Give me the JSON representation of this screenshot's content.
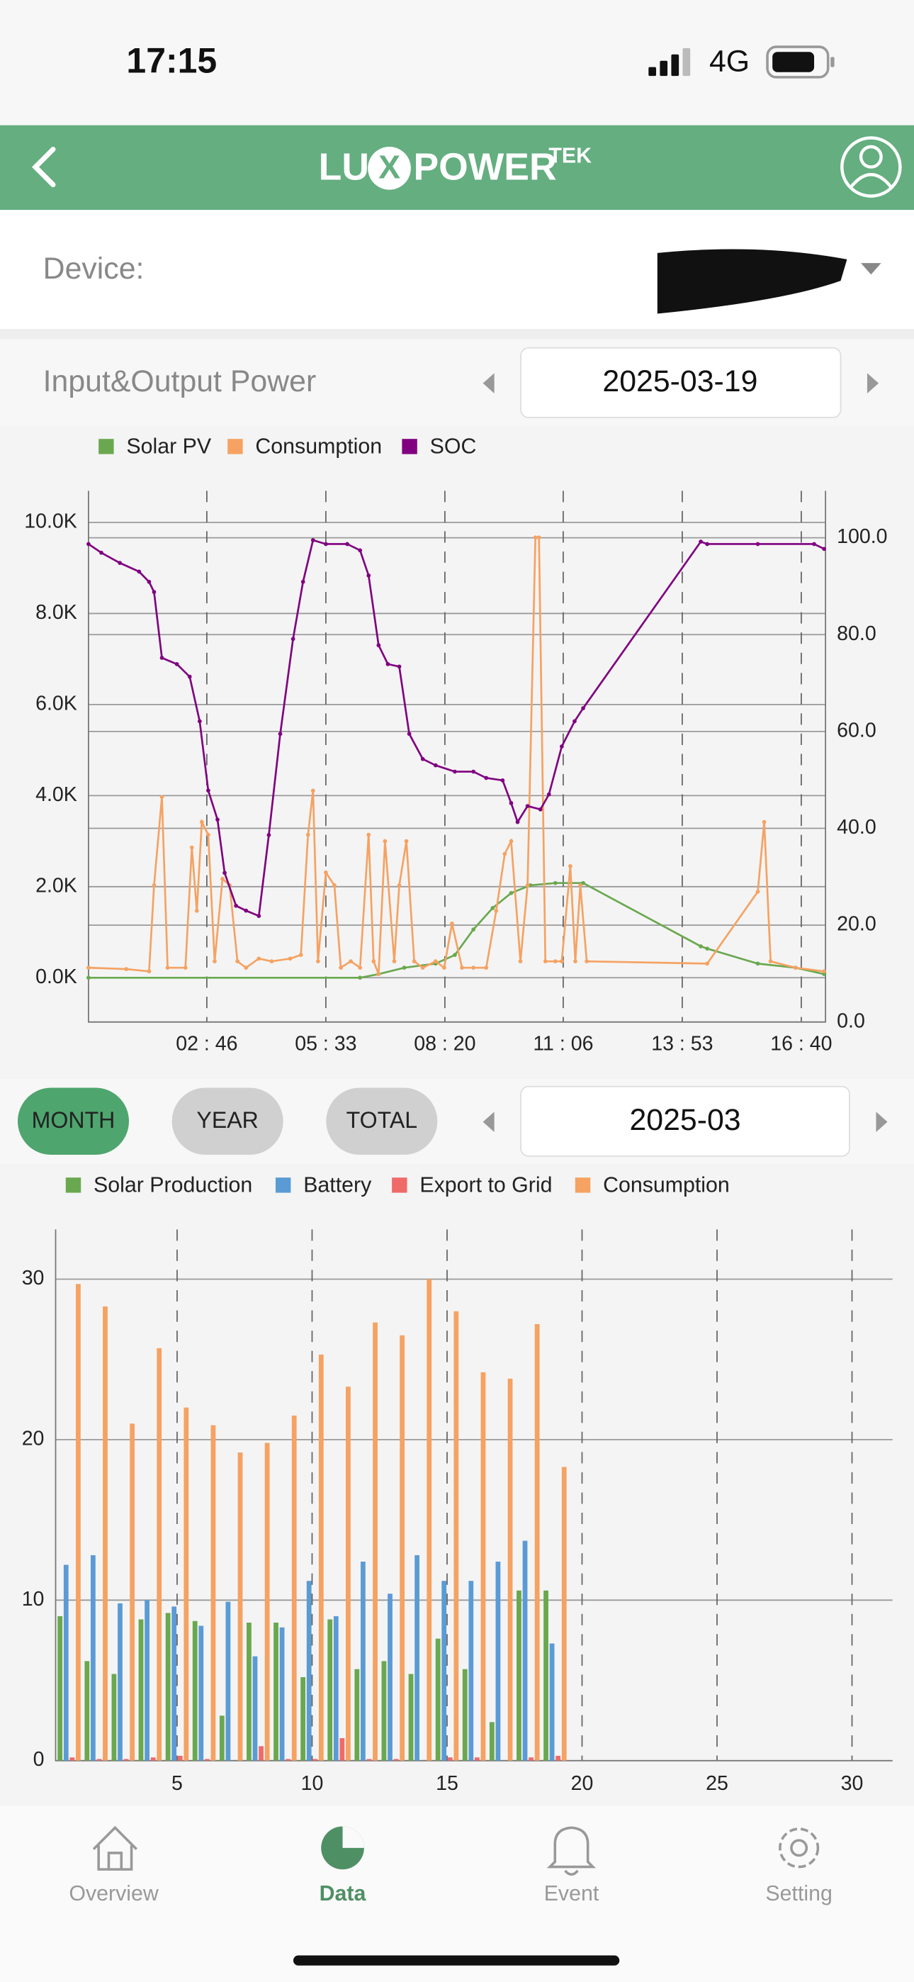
{
  "status_bar": {
    "time": "17:15",
    "network": "4G"
  },
  "header": {
    "brand": [
      "LU",
      "X",
      "POWER"
    ],
    "brand_suffix": "TEK"
  },
  "device": {
    "label": "Device:"
  },
  "power_section": {
    "title": "Input&Output Power",
    "date": "2025-03-19"
  },
  "chart_data": [
    {
      "type": "line",
      "xlim": [
        0,
        1034
      ],
      "xticks": [
        {
          "value": 166,
          "label": "02 : 46"
        },
        {
          "value": 333,
          "label": "05 : 33"
        },
        {
          "value": 500,
          "label": "08 : 20"
        },
        {
          "value": 666,
          "label": "11 : 06"
        },
        {
          "value": 833,
          "label": "13 : 53"
        },
        {
          "value": 1000,
          "label": "16 : 40"
        }
      ],
      "ylim": [
        -972,
        10695
      ],
      "yticks": [
        {
          "value": 0,
          "label": "0.0K"
        },
        {
          "value": 2000,
          "label": "2.0K"
        },
        {
          "value": 4000,
          "label": "4.0K"
        },
        {
          "value": 6000,
          "label": "6.0K"
        },
        {
          "value": 8000,
          "label": "8.0K"
        },
        {
          "value": 10000,
          "label": "10.0K"
        }
      ],
      "y2lim": [
        0,
        109.7
      ],
      "y2ticks": [
        {
          "value": 0,
          "label": "0.0"
        },
        {
          "value": 20,
          "label": "20.0"
        },
        {
          "value": 40,
          "label": "40.0"
        },
        {
          "value": 60,
          "label": "60.0"
        },
        {
          "value": 80,
          "label": "80.0"
        },
        {
          "value": 100,
          "label": "100.0"
        }
      ],
      "grid": true,
      "series": [
        {
          "name": "Solar PV",
          "color": "#6aa84f",
          "x": [
            0,
            381,
            407,
            443,
            487,
            514,
            540,
            567,
            593,
            620,
            655,
            694,
            859,
            868,
            939,
            992,
            1032
          ],
          "values": [
            0,
            0,
            80,
            220,
            310,
            500,
            1060,
            1530,
            1860,
            2030,
            2080,
            2080,
            690,
            640,
            310,
            220,
            80
          ]
        },
        {
          "name": "Consumption",
          "color": "#f5a262",
          "x": [
            0,
            53,
            85,
            92,
            103,
            111,
            136,
            145,
            152,
            159,
            168,
            177,
            188,
            198,
            209,
            221,
            239,
            257,
            283,
            298,
            308,
            315,
            322,
            333,
            345,
            354,
            368,
            381,
            393,
            400,
            407,
            416,
            429,
            436,
            446,
            457,
            469,
            487,
            499,
            510,
            524,
            540,
            558,
            572,
            584,
            593,
            606,
            616,
            627,
            632,
            641,
            655,
            664,
            676,
            683,
            690,
            699,
            868,
            939,
            948,
            957,
            992,
            1032
          ],
          "values": [
            220,
            190,
            140,
            2030,
            3970,
            220,
            220,
            2860,
            1470,
            3420,
            3140,
            360,
            2170,
            2030,
            360,
            220,
            420,
            360,
            420,
            500,
            3140,
            4110,
            360,
            2310,
            2030,
            220,
            360,
            220,
            3140,
            360,
            80,
            3000,
            360,
            2030,
            3000,
            360,
            220,
            360,
            220,
            1190,
            220,
            220,
            220,
            1470,
            2720,
            3000,
            360,
            2030,
            9670,
            9670,
            360,
            360,
            360,
            2450,
            360,
            2030,
            360,
            310,
            1890,
            3420,
            360,
            220,
            140
          ]
        },
        {
          "name": "SOC",
          "color": "#800080",
          "axis": "y2",
          "x": [
            0,
            18,
            44,
            71,
            85,
            92,
            103,
            124,
            142,
            156,
            168,
            181,
            191,
            207,
            221,
            239,
            253,
            269,
            287,
            301,
            315,
            333,
            363,
            381,
            393,
            407,
            420,
            436,
            450,
            469,
            487,
            514,
            540,
            558,
            581,
            593,
            602,
            616,
            634,
            646,
            664,
            682,
            694,
            859,
            868,
            939,
            1018,
            1032
          ],
          "values": [
            98.7,
            96.9,
            94.8,
            93,
            90.9,
            88.8,
            75.2,
            73.9,
            71.3,
            62.1,
            47.8,
            41.8,
            30.8,
            24,
            23,
            21.9,
            38.6,
            59.5,
            79.1,
            90.9,
            99.5,
            98.7,
            98.7,
            97.4,
            92.2,
            77.8,
            73.9,
            73.4,
            59.5,
            54.3,
            53,
            51.7,
            51.7,
            50.4,
            49.9,
            45.2,
            41.3,
            44.6,
            43.9,
            47,
            56.9,
            62.1,
            64.8,
            99.2,
            98.7,
            98.7,
            98.7,
            97.7
          ]
        }
      ]
    },
    {
      "type": "bar",
      "x": [
        1,
        2,
        3,
        4,
        5,
        6,
        7,
        8,
        9,
        10,
        11,
        12,
        13,
        14,
        15,
        16,
        17,
        18,
        19
      ],
      "xlim": [
        0.5,
        31.5
      ],
      "xticks": [
        5,
        10,
        15,
        20,
        25,
        30
      ],
      "ylim": [
        0,
        33.1
      ],
      "yticks": [
        0,
        10,
        20,
        30
      ],
      "grid": true,
      "series": [
        {
          "name": "Solar Production",
          "color": "#6aa84f",
          "values": [
            9,
            6.2,
            5.4,
            8.8,
            9.2,
            8.7,
            2.8,
            8.6,
            8.6,
            5.2,
            8.8,
            5.7,
            6.2,
            5.4,
            7.6,
            5.7,
            2.4,
            10.6,
            10.6
          ]
        },
        {
          "name": "Battery",
          "color": "#5b9bd5",
          "values": [
            12.2,
            12.8,
            9.8,
            10,
            9.6,
            8.4,
            9.9,
            6.5,
            8.3,
            11.2,
            9,
            12.4,
            10.4,
            12.8,
            11.2,
            11.2,
            12.4,
            13.7,
            7.3
          ]
        },
        {
          "name": "Export to Grid",
          "color": "#f06a6a",
          "values": [
            0.2,
            0.1,
            0.1,
            0.2,
            0.3,
            0.1,
            0,
            0.9,
            0.1,
            0.1,
            1.4,
            0.1,
            0.1,
            0,
            0.2,
            0.2,
            0,
            0.2,
            0.3
          ]
        },
        {
          "name": "Consumption",
          "color": "#f5a262",
          "values": [
            29.7,
            28.3,
            21,
            25.7,
            22,
            20.9,
            19.2,
            19.8,
            21.5,
            25.3,
            23.3,
            27.3,
            26.5,
            30,
            28,
            24.2,
            23.8,
            27.2,
            18.3
          ]
        }
      ]
    }
  ],
  "period": {
    "tabs": [
      "MONTH",
      "YEAR",
      "TOTAL"
    ],
    "selected": "MONTH",
    "date": "2025-03"
  },
  "nav": {
    "items": [
      "Overview",
      "Data",
      "Event",
      "Setting"
    ],
    "selected": "Data"
  }
}
